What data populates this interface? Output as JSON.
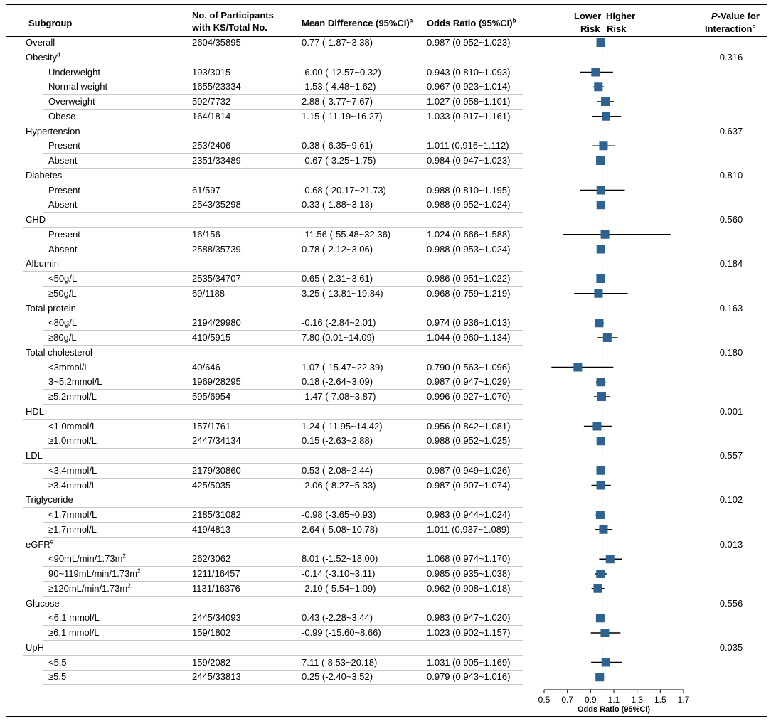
{
  "headers": {
    "subgroup": "Subgroup",
    "participants_line1": "No. of Participants",
    "participants_line2": "with KS/Total No.",
    "mean_diff": "Mean Difference (95%CI)",
    "mean_diff_sup": "a",
    "odds_ratio": "Odds Ratio (95%CI)",
    "odds_ratio_sup": "b",
    "lower_risk_1": "Lower",
    "lower_risk_2": "Risk",
    "higher_risk_1": "Higher",
    "higher_risk_2": "Risk",
    "pvalue_p": "P",
    "pvalue_line1": "-Value for",
    "pvalue_line2": "Interaction",
    "pvalue_sup": "c"
  },
  "accent_color": "#2e6391",
  "chart_data": {
    "type": "forest",
    "xlabel": "Odds Ratio (95%CI)",
    "xlim": [
      0.5,
      1.7
    ],
    "xticks": [
      "0.5",
      "0.7",
      "0.9",
      "1.1",
      "1.3",
      "1.5",
      "1.7"
    ],
    "reference_line": 1.0,
    "rows": [
      {
        "label": "Overall",
        "level": 0,
        "n": "2604/35895",
        "md": "0.77 (-1.87~3.38)",
        "or_text": "0.987 (0.952~1.023)",
        "or": 0.987,
        "lo": 0.952,
        "hi": 1.023
      },
      {
        "label": "Obesity",
        "sup": "d",
        "level": 0,
        "p": "0.316"
      },
      {
        "label": "Underweight",
        "level": 1,
        "n": "193/3015",
        "md": "-6.00 (-12.57~0.32)",
        "or_text": "0.943 (0.810~1.093)",
        "or": 0.943,
        "lo": 0.81,
        "hi": 1.093
      },
      {
        "label": "Normal weight",
        "level": 1,
        "n": "1655/23334",
        "md": "-1.53 (-4.48~1.62)",
        "or_text": "0.967 (0.923~1.014)",
        "or": 0.967,
        "lo": 0.923,
        "hi": 1.014
      },
      {
        "label": "Overweight",
        "level": 1,
        "n": "592/7732",
        "md": "2.88 (-3.77~7.67)",
        "or_text": "1.027 (0.958~1.101)",
        "or": 1.027,
        "lo": 0.958,
        "hi": 1.101
      },
      {
        "label": "Obese",
        "level": 1,
        "n": "164/1814",
        "md": "1.15 (-11.19~16.27)",
        "or_text": "1.033 (0.917~1.161)",
        "or": 1.033,
        "lo": 0.917,
        "hi": 1.161
      },
      {
        "label": "Hypertension",
        "level": 0,
        "p": "0.637"
      },
      {
        "label": "Present",
        "level": 1,
        "n": "253/2406",
        "md": "0.38 (-6.35~9.61)",
        "or_text": "1.011 (0.916~1.112)",
        "or": 1.011,
        "lo": 0.916,
        "hi": 1.112
      },
      {
        "label": "Absent",
        "level": 1,
        "n": "2351/33489",
        "md": "-0.67 (-3.25~1.75)",
        "or_text": "0.984 (0.947~1.023)",
        "or": 0.984,
        "lo": 0.947,
        "hi": 1.023
      },
      {
        "label": "Diabetes",
        "level": 0,
        "p": "0.810"
      },
      {
        "label": "Present",
        "level": 1,
        "n": "61/597",
        "md": "-0.68 (-20.17~21.73)",
        "or_text": "0.988 (0.810~1.195)",
        "or": 0.988,
        "lo": 0.81,
        "hi": 1.195
      },
      {
        "label": "Absent",
        "level": 1,
        "n": "2543/35298",
        "md": "0.33 (-1.88~3.18)",
        "or_text": "0.988 (0.952~1.024)",
        "or": 0.988,
        "lo": 0.952,
        "hi": 1.024
      },
      {
        "label": "CHD",
        "level": 0,
        "p": "0.560"
      },
      {
        "label": "Present",
        "level": 1,
        "n": "16/156",
        "md": "-11.56 (-55.48~32.36)",
        "or_text": "1.024 (0.666~1.588)",
        "or": 1.024,
        "lo": 0.666,
        "hi": 1.588
      },
      {
        "label": "Absent",
        "level": 1,
        "n": "2588/35739",
        "md": "0.78 (-2.12~3.06)",
        "or_text": "0.988 (0.953~1.024)",
        "or": 0.988,
        "lo": 0.953,
        "hi": 1.024
      },
      {
        "label": "Albumin",
        "level": 0,
        "p": "0.184"
      },
      {
        "label": "<50g/L",
        "level": 1,
        "n": "2535/34707",
        "md": "0.65 (-2.31~3.61)",
        "or_text": "0.986 (0.951~1.022)",
        "or": 0.986,
        "lo": 0.951,
        "hi": 1.022
      },
      {
        "label": "≥50g/L",
        "level": 1,
        "n": "69/1188",
        "md": "3.25 (-13.81~19.84)",
        "or_text": "0.968 (0.759~1.219)",
        "or": 0.968,
        "lo": 0.759,
        "hi": 1.219
      },
      {
        "label": "Total protein",
        "level": 0,
        "p": "0.163"
      },
      {
        "label": "<80g/L",
        "level": 1,
        "n": "2194/29980",
        "md": "-0.16 (-2.84~2.01)",
        "or_text": "0.974 (0.936~1.013)",
        "or": 0.974,
        "lo": 0.936,
        "hi": 1.013
      },
      {
        "label": "≥80g/L",
        "level": 1,
        "n": "410/5915",
        "md": "7.80 (0.01~14.09)",
        "or_text": "1.044 (0.960~1.134)",
        "or": 1.044,
        "lo": 0.96,
        "hi": 1.134
      },
      {
        "label": "Total cholesterol",
        "level": 0,
        "p": "0.180"
      },
      {
        "label": "<3mmol/L",
        "level": 1,
        "n": "40/646",
        "md": "1.07 (-15.47~22.39)",
        "or_text": "0.790 (0.563~1.096)",
        "or": 0.79,
        "lo": 0.563,
        "hi": 1.096
      },
      {
        "label": "3~5.2mmol/L",
        "level": 1,
        "n": "1969/28295",
        "md": "0.18 (-2.64~3.09)",
        "or_text": "0.987 (0.947~1.029)",
        "or": 0.987,
        "lo": 0.947,
        "hi": 1.029
      },
      {
        "label": "≥5.2mmol/L",
        "level": 1,
        "n": "595/6954",
        "md": "-1.47 (-7.08~3.87)",
        "or_text": "0.996 (0.927~1.070)",
        "or": 0.996,
        "lo": 0.927,
        "hi": 1.07
      },
      {
        "label": "HDL",
        "level": 0,
        "p": "0.001"
      },
      {
        "label": "<1.0mmol/L",
        "level": 1,
        "n": "157/1761",
        "md": "1.24 (-11.95~14.42)",
        "or_text": "0.956 (0.842~1.081)",
        "or": 0.956,
        "lo": 0.842,
        "hi": 1.081
      },
      {
        "label": "≥1.0mmol/L",
        "level": 1,
        "n": "2447/34134",
        "md": "0.15 (-2.63~2.88)",
        "or_text": "0.988 (0.952~1.025)",
        "or": 0.988,
        "lo": 0.952,
        "hi": 1.025
      },
      {
        "label": "LDL",
        "level": 0,
        "p": "0.557"
      },
      {
        "label": "<3.4mmol/L",
        "level": 1,
        "n": "2179/30860",
        "md": "0.53 (-2.08~2.44)",
        "or_text": "0.987 (0.949~1.026)",
        "or": 0.987,
        "lo": 0.949,
        "hi": 1.026
      },
      {
        "label": "≥3.4mmol/L",
        "level": 1,
        "n": "425/5035",
        "md": "-2.06 (-8.27~5.33)",
        "or_text": "0.987 (0.907~1.074)",
        "or": 0.987,
        "lo": 0.907,
        "hi": 1.074
      },
      {
        "label": "Triglyceride",
        "level": 0,
        "p": "0.102"
      },
      {
        "label": "<1.7mmol/L",
        "level": 1,
        "n": "2185/31082",
        "md": "-0.98 (-3.65~0.93)",
        "or_text": "0.983 (0.944~1.024)",
        "or": 0.983,
        "lo": 0.944,
        "hi": 1.024
      },
      {
        "label": "≥1.7mmol/L",
        "level": 1,
        "n": "419/4813",
        "md": "2.64 (-5.08~10.78)",
        "or_text": "1.011 (0.937~1.089)",
        "or": 1.011,
        "lo": 0.937,
        "hi": 1.089
      },
      {
        "label": "eGFR",
        "sup": "e",
        "level": 0,
        "p": "0.013"
      },
      {
        "label": "<90mL/min/1.73m",
        "sup": "2",
        "level": 1,
        "n": "262/3062",
        "md": "8.01 (-1.52~18.00)",
        "or_text": "1.068 (0.974~1.170)",
        "or": 1.068,
        "lo": 0.974,
        "hi": 1.17
      },
      {
        "label": "90~119mL/min/1.73m",
        "sup": "2",
        "level": 1,
        "n": "1211/16457",
        "md": "-0.14 (-3.10~3.11)",
        "or_text": "0.985 (0.935~1.038)",
        "or": 0.985,
        "lo": 0.935,
        "hi": 1.038
      },
      {
        "label": "≥120mL/min/1.73m",
        "sup": "2",
        "level": 1,
        "n": "1131/16376",
        "md": "-2.10 (-5.54~1.09)",
        "or_text": "0.962 (0.908~1.018)",
        "or": 0.962,
        "lo": 0.908,
        "hi": 1.018
      },
      {
        "label": "Glucose",
        "level": 0,
        "p": "0.556"
      },
      {
        "label": "<6.1 mmol/L",
        "level": 1,
        "n": "2445/34093",
        "md": "0.43 (-2.28~3.44)",
        "or_text": "0.983 (0.947~1.020)",
        "or": 0.983,
        "lo": 0.947,
        "hi": 1.02
      },
      {
        "label": "≥6.1 mmol/L",
        "level": 1,
        "n": "159/1802",
        "md": "-0.99 (-15.60~8.66)",
        "or_text": "1.023 (0.902~1.157)",
        "or": 1.023,
        "lo": 0.902,
        "hi": 1.157
      },
      {
        "label": "UpH",
        "level": 0,
        "p": "0.035"
      },
      {
        "label": "<5.5",
        "level": 1,
        "n": "159/2082",
        "md": "7.11 (-8.53~20.18)",
        "or_text": "1.031 (0.905~1.169)",
        "or": 1.031,
        "lo": 0.905,
        "hi": 1.169
      },
      {
        "label": "≥5.5",
        "level": 1,
        "n": "2445/33813",
        "md": "0.25 (-2.40~3.52)",
        "or_text": "0.979 (0.943~1.016)",
        "or": 0.979,
        "lo": 0.943,
        "hi": 1.016
      }
    ]
  }
}
